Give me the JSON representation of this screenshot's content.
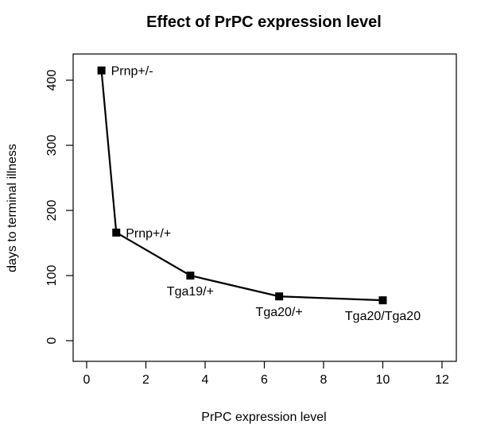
{
  "chart_data": {
    "type": "line",
    "title": "Effect of PrPC expression level",
    "xlabel": "PrPC expression level",
    "ylabel": "days to terminal illness",
    "xlim": [
      0,
      12
    ],
    "ylim": [
      0,
      400
    ],
    "xticks": [
      0,
      2,
      4,
      6,
      8,
      10,
      12
    ],
    "yticks": [
      0,
      100,
      200,
      300,
      400
    ],
    "grid": false,
    "points": [
      {
        "x": 0.5,
        "y": 415,
        "label": "Prnp+/-",
        "label_pos": "right"
      },
      {
        "x": 1.0,
        "y": 166,
        "label": "Prnp+/+",
        "label_pos": "right"
      },
      {
        "x": 3.5,
        "y": 100,
        "label": "Tga19/+",
        "label_pos": "below"
      },
      {
        "x": 6.5,
        "y": 68,
        "label": "Tga20/+",
        "label_pos": "below"
      },
      {
        "x": 10.0,
        "y": 62,
        "label": "Tga20/Tga20",
        "label_pos": "below"
      }
    ],
    "colors": {
      "line": "#000000",
      "marker": "#000000"
    }
  }
}
